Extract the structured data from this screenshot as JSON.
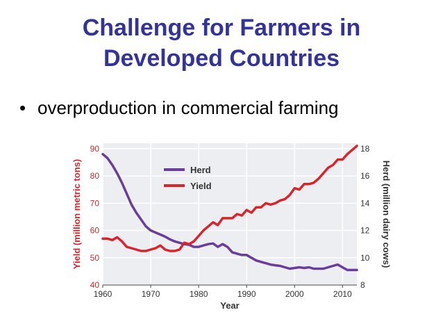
{
  "slide": {
    "title_line1": "Challenge for Farmers in",
    "title_line2": "Developed Countries",
    "bullet_symbol": "•",
    "bullet_text": "overproduction in commercial farming"
  },
  "colors": {
    "title": "#333399",
    "herd": "#6a3d9a",
    "yield": "#d7262b",
    "plot_bg": "#edeef1",
    "grid": "#ffffff"
  },
  "chart_data": {
    "type": "line",
    "xlabel": "Year",
    "ylabel_left": "Yield (million metric tons)",
    "ylabel_right": "Herd (million dairy cows)",
    "xlim": [
      1960,
      2013
    ],
    "ylim_left": [
      40,
      92
    ],
    "ylim_right": [
      8,
      18.4
    ],
    "xticks": [
      1960,
      1970,
      1980,
      1990,
      2000,
      2010
    ],
    "yticks_left": [
      40,
      50,
      60,
      70,
      80,
      90
    ],
    "yticks_right": [
      8,
      10,
      12,
      14,
      16,
      18
    ],
    "legend_position": "top-center",
    "grid": true,
    "series": [
      {
        "name": "Herd",
        "axis": "right",
        "color": "#6a3d9a",
        "x": [
          1960,
          1961,
          1962,
          1963,
          1964,
          1965,
          1966,
          1967,
          1968,
          1969,
          1970,
          1971,
          1972,
          1973,
          1974,
          1975,
          1976,
          1977,
          1978,
          1979,
          1980,
          1981,
          1982,
          1983,
          1984,
          1985,
          1986,
          1987,
          1988,
          1989,
          1990,
          1991,
          1992,
          1993,
          1994,
          1995,
          1996,
          1997,
          1998,
          1999,
          2000,
          2001,
          2002,
          2003,
          2004,
          2005,
          2006,
          2007,
          2008,
          2009,
          2010,
          2011,
          2012,
          2013
        ],
        "values": [
          17.6,
          17.3,
          16.8,
          16.2,
          15.5,
          14.7,
          13.9,
          13.3,
          12.8,
          12.3,
          12.0,
          11.85,
          11.7,
          11.55,
          11.35,
          11.2,
          11.1,
          11.0,
          10.95,
          10.8,
          10.8,
          10.9,
          11.0,
          11.05,
          10.8,
          11.0,
          10.8,
          10.4,
          10.3,
          10.2,
          10.2,
          10.0,
          9.8,
          9.7,
          9.6,
          9.5,
          9.45,
          9.4,
          9.3,
          9.2,
          9.25,
          9.3,
          9.25,
          9.3,
          9.2,
          9.2,
          9.2,
          9.3,
          9.4,
          9.5,
          9.3,
          9.1,
          9.1,
          9.1
        ]
      },
      {
        "name": "Yield",
        "axis": "left",
        "color": "#d7262b",
        "x": [
          1960,
          1961,
          1962,
          1963,
          1964,
          1965,
          1966,
          1967,
          1968,
          1969,
          1970,
          1971,
          1972,
          1973,
          1974,
          1975,
          1976,
          1977,
          1978,
          1979,
          1980,
          1981,
          1982,
          1983,
          1984,
          1985,
          1986,
          1987,
          1988,
          1989,
          1990,
          1991,
          1992,
          1993,
          1994,
          1995,
          1996,
          1997,
          1998,
          1999,
          2000,
          2001,
          2002,
          2003,
          2004,
          2005,
          2006,
          2007,
          2008,
          2009,
          2010,
          2011,
          2012,
          2013
        ],
        "values": [
          57,
          57,
          56.5,
          57.5,
          56,
          54,
          53.5,
          53,
          52.5,
          52.5,
          53,
          53.5,
          54.5,
          53,
          52.5,
          52.5,
          53,
          55.5,
          55,
          56,
          58,
          60,
          61.5,
          63,
          62,
          64.5,
          64.5,
          64.5,
          66,
          65.5,
          67.5,
          66.5,
          68.5,
          68.5,
          70,
          69.5,
          70,
          71,
          71.5,
          73,
          75.5,
          75,
          77,
          77,
          77.5,
          79,
          81,
          83,
          84,
          86,
          86,
          88,
          89.5,
          91
        ]
      }
    ]
  }
}
